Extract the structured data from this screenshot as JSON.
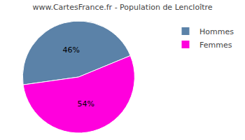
{
  "chart_data": {
    "type": "pie",
    "title": "www.CartesFrance.fr - Population de Lencloître",
    "categories": [
      "Hommes",
      "Femmes"
    ],
    "values": [
      46,
      54
    ],
    "value_labels": [
      "46%",
      "54%"
    ],
    "colors": [
      "#5b82a8",
      "#ff00dd"
    ],
    "data_labels": true,
    "legend": "upper right"
  }
}
